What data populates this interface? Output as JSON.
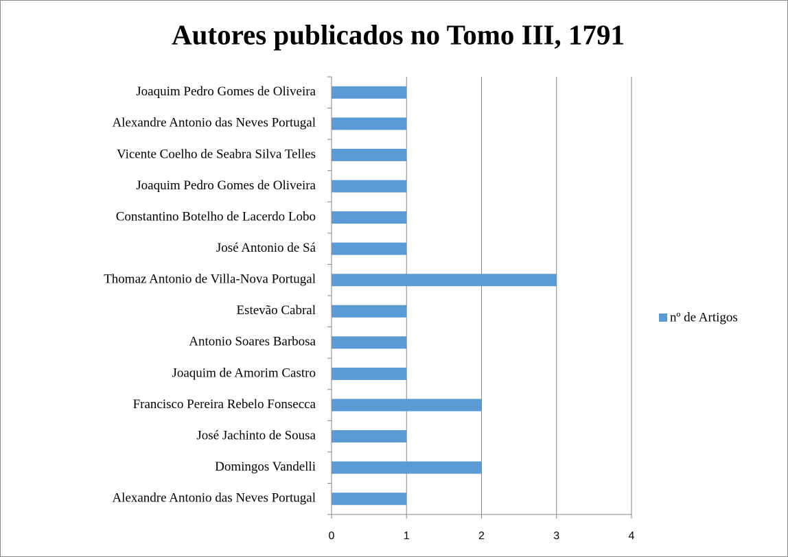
{
  "chart_data": {
    "type": "barh",
    "title": "Autores publicados no Tomo III, 1791",
    "categories": [
      "Joaquim Pedro Gomes de Oliveira",
      "Alexandre Antonio das Neves Portugal",
      "Vicente Coelho de Seabra Silva Telles",
      "Joaquim Pedro Gomes de Oliveira",
      "Constantino Botelho de Lacerdo Lobo",
      "José Antonio de Sá",
      "Thomaz Antonio de Villa-Nova Portugal",
      "Estevão Cabral",
      "Antonio Soares Barbosa",
      "Joaquim de Amorim Castro",
      "Francisco Pereira Rebelo Fonsecca",
      "José Jachinto de Sousa",
      "Domingos Vandelli",
      "Alexandre Antonio das Neves Portugal"
    ],
    "series": [
      {
        "name": "nº de Artigos",
        "color": "#5b9bd5",
        "values": [
          1,
          1,
          1,
          1,
          1,
          1,
          3,
          1,
          1,
          1,
          2,
          1,
          2,
          1
        ]
      }
    ],
    "xlim": [
      0,
      4
    ],
    "xticks": [
      0,
      1,
      2,
      3,
      4
    ],
    "grid": true,
    "legend": "right"
  }
}
